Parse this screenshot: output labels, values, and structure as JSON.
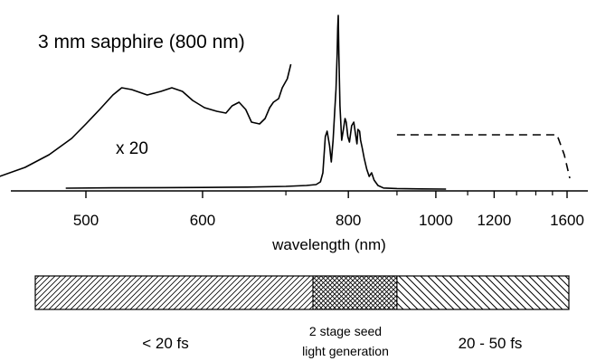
{
  "chart_data": {
    "type": "line",
    "title": "3 mm sapphire (800 nm)",
    "xlabel": "wavelength (nm)",
    "ylabel": "",
    "x_scale": "reciprocal",
    "xlim": [
      430,
      1650
    ],
    "tick_labels": [
      "500",
      "600",
      "800",
      "1000",
      "1200",
      "1600"
    ],
    "tick_values": [
      500,
      600,
      800,
      1000,
      1200,
      1600
    ],
    "minor_tick_values": [
      700,
      900,
      1100,
      1300,
      1400,
      1500
    ],
    "annotations": {
      "scale_factor": "x 20"
    },
    "series": [
      {
        "style": "solid",
        "points": [
          [
            430,
            5
          ],
          [
            445,
            8
          ],
          [
            460,
            13
          ],
          [
            475,
            20
          ],
          [
            490,
            29
          ],
          [
            500,
            37
          ],
          [
            510,
            45
          ],
          [
            520,
            53
          ],
          [
            527,
            57
          ],
          [
            535,
            56
          ],
          [
            548,
            53
          ],
          [
            560,
            55
          ],
          [
            570,
            57
          ],
          [
            580,
            55
          ],
          [
            590,
            50
          ],
          [
            602,
            46
          ],
          [
            615,
            44
          ],
          [
            625,
            43
          ],
          [
            632,
            47
          ],
          [
            640,
            49
          ],
          [
            648,
            45
          ],
          [
            655,
            38
          ],
          [
            665,
            37
          ],
          [
            672,
            40
          ],
          [
            678,
            46
          ],
          [
            683,
            49
          ],
          [
            690,
            51
          ],
          [
            695,
            57
          ],
          [
            702,
            62
          ],
          [
            707,
            70
          ]
        ]
      },
      {
        "style": "solid",
        "points": [
          [
            486,
            1.5
          ],
          [
            520,
            1.7
          ],
          [
            560,
            1.8
          ],
          [
            600,
            1.9
          ],
          [
            650,
            2.1
          ],
          [
            700,
            2.5
          ],
          [
            730,
            3.0
          ],
          [
            745,
            3.5
          ],
          [
            752,
            5
          ],
          [
            756,
            10
          ],
          [
            760,
            30
          ],
          [
            763,
            33
          ],
          [
            767,
            25
          ],
          [
            770,
            16
          ],
          [
            773,
            28
          ],
          [
            776,
            45
          ],
          [
            778,
            56
          ],
          [
            780,
            76
          ],
          [
            781,
            90
          ],
          [
            782,
            97
          ],
          [
            783,
            75
          ],
          [
            785,
            47
          ],
          [
            788,
            28
          ],
          [
            791,
            34
          ],
          [
            794,
            40
          ],
          [
            796,
            38
          ],
          [
            799,
            30
          ],
          [
            802,
            27
          ],
          [
            806,
            36
          ],
          [
            810,
            38
          ],
          [
            813,
            32
          ],
          [
            816,
            26
          ],
          [
            818,
            34
          ],
          [
            821,
            33
          ],
          [
            823,
            28
          ],
          [
            826,
            24
          ],
          [
            830,
            18
          ],
          [
            835,
            12
          ],
          [
            840,
            8
          ],
          [
            845,
            10
          ],
          [
            850,
            6
          ],
          [
            858,
            3
          ],
          [
            870,
            1.6
          ],
          [
            900,
            1.3
          ],
          [
            960,
            1.1
          ],
          [
            1030,
            1.0
          ]
        ]
      },
      {
        "style": "dashed",
        "points": [
          [
            900,
            31
          ],
          [
            1000,
            31
          ],
          [
            1200,
            31
          ],
          [
            1400,
            31
          ],
          [
            1530,
            31
          ],
          [
            1580,
            20
          ],
          [
            1620,
            7
          ]
        ]
      }
    ],
    "bar": {
      "segments": [
        {
          "label": "< 20 fs",
          "from": 430,
          "to": 740,
          "pattern": "fine-diagonal"
        },
        {
          "label": "2 stage seed light generation",
          "from": 740,
          "to": 900,
          "pattern": "crosshatch"
        },
        {
          "label": "20 - 50 fs",
          "from": 900,
          "to": 1620,
          "pattern": "coarse-diagonal"
        }
      ]
    }
  }
}
